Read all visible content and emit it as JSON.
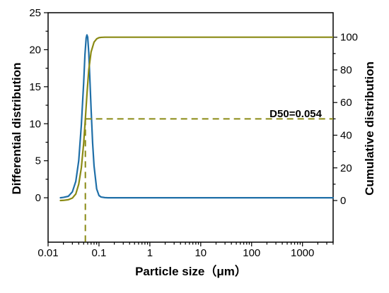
{
  "chart_data": {
    "type": "line",
    "title": "",
    "xlabel": "Particle size（μm）",
    "ylabel_left": "Differential distribution",
    "ylabel_right": "Cumulative distribution",
    "x_scale": "log",
    "xlim": [
      0.01,
      4000
    ],
    "ylim_left": [
      -6,
      25
    ],
    "ylim_right": [
      -25.5,
      115
    ],
    "x_ticks": [
      0.01,
      0.1,
      1,
      10,
      100,
      1000
    ],
    "x_tick_labels": [
      "0.01",
      "0.1",
      "1",
      "10",
      "100",
      "1000"
    ],
    "y_left_ticks": [
      0,
      5,
      10,
      15,
      20,
      25
    ],
    "y_left_tick_labels": [
      "0",
      "5",
      "10",
      "15",
      "20",
      "25"
    ],
    "y_right_ticks": [
      0,
      20,
      40,
      60,
      80,
      100
    ],
    "y_right_tick_labels": [
      "0",
      "20",
      "40",
      "60",
      "80",
      "100"
    ],
    "grid": false,
    "series": [
      {
        "axis": "left",
        "color": "#1f6fa8",
        "x": [
          0.0175,
          0.02,
          0.025,
          0.03,
          0.035,
          0.04,
          0.045,
          0.05,
          0.053,
          0.056,
          0.058,
          0.06,
          0.063,
          0.066,
          0.07,
          0.075,
          0.08,
          0.09,
          0.1,
          0.11,
          0.13,
          0.15,
          0.2,
          1,
          10,
          100,
          1000,
          4000
        ],
        "y": [
          0,
          0.05,
          0.2,
          0.8,
          2.2,
          5.0,
          9.8,
          15.5,
          19.3,
          21.6,
          22.0,
          21.7,
          19.6,
          16.3,
          12.0,
          7.4,
          4.3,
          1.2,
          0.3,
          0.1,
          0.02,
          0,
          0,
          0,
          0,
          0,
          0,
          0
        ]
      },
      {
        "axis": "right",
        "color": "#8a8a14",
        "x": [
          0.0175,
          0.02,
          0.025,
          0.03,
          0.035,
          0.04,
          0.045,
          0.05,
          0.054,
          0.058,
          0.063,
          0.07,
          0.08,
          0.09,
          0.1,
          0.11,
          0.13,
          0.15,
          0.2,
          1,
          10,
          100,
          1000,
          4000
        ],
        "y": [
          0,
          0.1,
          0.5,
          1.5,
          4,
          10,
          20,
          35,
          50,
          65,
          80,
          91,
          97,
          99,
          99.7,
          99.9,
          100,
          100,
          100,
          100,
          100,
          100,
          100,
          100
        ]
      }
    ],
    "reference_lines": {
      "color": "#8a8a14",
      "style": "dashed",
      "vertical_x": 0.054,
      "horizontal_right_y": 50
    },
    "annotation": "D50=0.054"
  }
}
